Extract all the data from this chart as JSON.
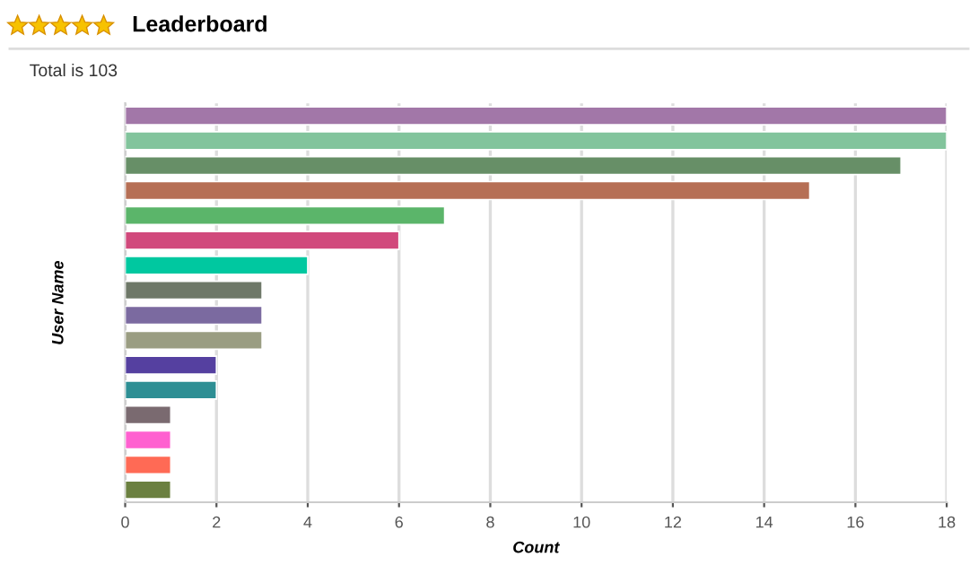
{
  "chart_data": {
    "type": "bar",
    "orientation": "horizontal",
    "title": "Leaderboard",
    "subtitle": "Total is 103",
    "xlabel": "Count",
    "ylabel": "User Name",
    "categories": [
      null,
      null,
      null,
      null,
      null,
      null,
      null,
      null,
      null,
      null,
      null,
      null,
      null,
      null,
      null,
      null
    ],
    "values": [
      18,
      18,
      17,
      15,
      7,
      6,
      4,
      3,
      3,
      3,
      2,
      2,
      1,
      1,
      1,
      1
    ],
    "colors": [
      "#a277a8",
      "#82c49c",
      "#678f67",
      "#b66f55",
      "#5bb56a",
      "#d1497c",
      "#00c8a0",
      "#6e7868",
      "#7b6aa0",
      "#9a9d82",
      "#5540a0",
      "#2e8f94",
      "#7a6a70",
      "#ff60d0",
      "#ff6a55",
      "#6b8040"
    ],
    "xlim": [
      0,
      18
    ],
    "xticks": [
      0,
      2,
      4,
      6,
      8,
      10,
      12,
      14,
      16,
      18
    ],
    "grid": "x",
    "legend": false
  }
}
